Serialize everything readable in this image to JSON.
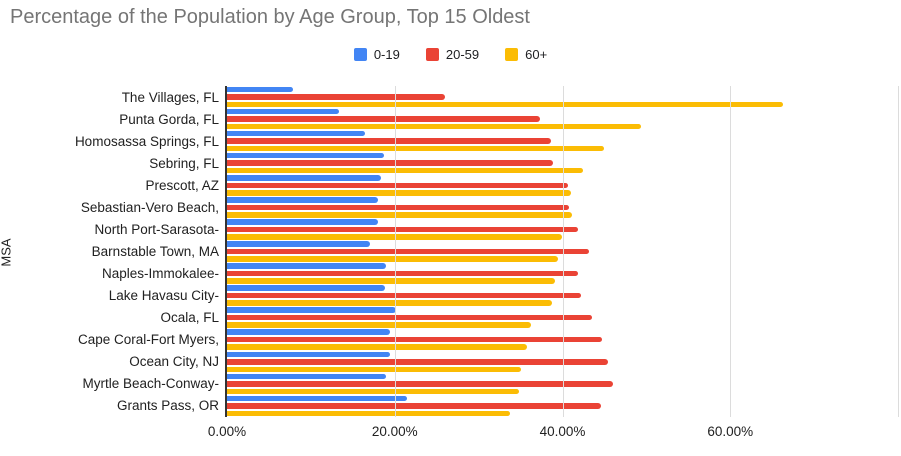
{
  "title": "Percentage of the Population by Age Group, Top 15 Oldest",
  "colors": {
    "series_blue": "#4285f4",
    "series_red": "#ea4335",
    "series_yellow": "#fbbc04",
    "title_text": "#757575",
    "gridline": "#dcdcdc",
    "axis_line": "#333333"
  },
  "chart_data": {
    "type": "bar",
    "orientation": "horizontal",
    "title": "Percentage of the Population by Age Group, Top 15 Oldest",
    "xlabel": "",
    "ylabel": "MSA",
    "xlim": [
      0,
      80
    ],
    "grid": true,
    "legend_position": "top",
    "grid_percents": [
      0,
      20,
      40,
      60,
      80
    ],
    "x_ticks": [
      {
        "value": 0,
        "label": "0.00%"
      },
      {
        "value": 20,
        "label": "20.00%"
      },
      {
        "value": 40,
        "label": "40.00%"
      },
      {
        "value": 60,
        "label": "60.00%"
      }
    ],
    "categories": [
      "The Villages, FL",
      "Punta Gorda, FL",
      "Homosassa Springs, FL",
      "Sebring, FL",
      "Prescott, AZ",
      "Sebastian-Vero Beach,",
      "North Port-Sarasota-",
      "Barnstable Town, MA",
      "Naples-Immokalee-",
      "Lake Havasu City-",
      "Ocala, FL",
      "Cape Coral-Fort Myers,",
      "Ocean City, NJ",
      "Myrtle Beach-Conway-",
      "Grants Pass, OR"
    ],
    "series": [
      {
        "name": "0-19",
        "color": "#4285f4",
        "values": [
          7.9,
          13.4,
          16.5,
          18.7,
          18.4,
          18.0,
          18.0,
          17.1,
          18.9,
          18.8,
          20.1,
          19.4,
          19.4,
          19.0,
          21.5
        ]
      },
      {
        "name": "20-59",
        "color": "#ea4335",
        "values": [
          26.0,
          37.3,
          38.6,
          38.9,
          40.6,
          40.8,
          41.9,
          43.2,
          41.8,
          42.2,
          43.5,
          44.7,
          45.4,
          46.0,
          44.6
        ]
      },
      {
        "name": "60+",
        "color": "#fbbc04",
        "values": [
          66.3,
          49.4,
          44.9,
          42.4,
          41.0,
          41.1,
          39.9,
          39.5,
          39.1,
          38.8,
          36.2,
          35.8,
          35.1,
          34.8,
          33.8
        ]
      }
    ]
  }
}
